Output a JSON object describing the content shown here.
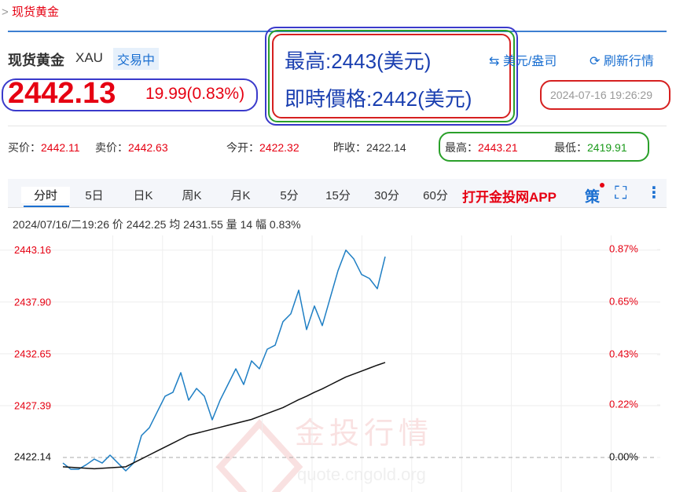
{
  "header": {
    "breadcrumb": "现货黄金",
    "name": "现货黄金",
    "code": "XAU",
    "status": "交易中"
  },
  "quote": {
    "price": "2442.13",
    "change": "19.99(0.83%)",
    "time": "2024-07-16 19:26:29",
    "unit": "美元/盎司",
    "refresh": "刷新行情"
  },
  "annotation": {
    "high": "最高:2443(美元)",
    "current": "即時價格:2442(美元)"
  },
  "stats": [
    {
      "label": "买价：",
      "value": "2442.11"
    },
    {
      "label": "卖价：",
      "value": "2442.63"
    },
    {
      "label": "今开：",
      "value": "2422.32"
    },
    {
      "label": "昨收：",
      "value": "2422.14"
    },
    {
      "label": "最高：",
      "value": "2443.21"
    },
    {
      "label": "最低：",
      "value": "2419.91"
    }
  ],
  "tabs": [
    "分时",
    "5日",
    "日K",
    "周K",
    "月K",
    "5分",
    "15分",
    "30分",
    "60分"
  ],
  "app_link": "打开金投网APP",
  "strategy": "策",
  "info": {
    "time": "2024/07/16/二19:26",
    "price_label": "价",
    "price": "2442.25",
    "avg_label": "均",
    "avg": "2431.55",
    "vol_label": "量",
    "vol": "14",
    "amp_label": "幅",
    "amp": "0.83%"
  },
  "watermark": {
    "title": "金投行情",
    "url": "quote.cngold.org"
  },
  "chart_data": {
    "type": "line",
    "ylim": [
      2418.8,
      2443.7
    ],
    "yticks": [
      2422.14,
      2427.39,
      2432.65,
      {
        "value": 2437.9,
        "label": "2437.90"
      },
      2443.16
    ],
    "y2lim": [
      -0.138,
      0.89
    ],
    "y2ticks": [
      {
        "value": 0,
        "label": "0.00%"
      },
      {
        "value": 0.22,
        "label": "0.22%"
      },
      {
        "value": 0.43,
        "label": "0.43%"
      },
      {
        "value": 0.65,
        "label": "0.65%"
      },
      {
        "value": 0.87,
        "label": "0.87%"
      }
    ],
    "grid": true,
    "series": [
      {
        "color": "#1f7fc4",
        "values": [
          2421.58,
          2420.95,
          2420.95,
          2421.42,
          2421.98,
          2421.58,
          2422.38,
          2421.58,
          2420.79,
          2421.58,
          2424.37,
          2425.16,
          2426.76,
          2428.35,
          2428.75,
          2430.74,
          2427.95,
          2429.14,
          2428.35,
          2425.96,
          2427.95,
          2429.54,
          2431.13,
          2429.54,
          2431.93,
          2431.13,
          2433.12,
          2433.52,
          2435.91,
          2436.71,
          2439.1,
          2435.11,
          2437.5,
          2435.51,
          2438.3,
          2441.08,
          2443.16,
          2442.28,
          2440.69,
          2440.29,
          2439.25,
          2442.5
        ]
      },
      {
        "color": "#111111",
        "values": [
          2421.2,
          2421.15,
          2421.1,
          2421.05,
          2421.0,
          2421.05,
          2421.1,
          2421.15,
          2421.2,
          2421.6,
          2422.0,
          2422.4,
          2422.8,
          2423.2,
          2423.6,
          2424.0,
          2424.4,
          2424.6,
          2424.8,
          2425.0,
          2425.2,
          2425.4,
          2425.6,
          2425.8,
          2426.0,
          2426.3,
          2426.6,
          2426.9,
          2427.2,
          2427.6,
          2428.0,
          2428.35,
          2428.75,
          2429.1,
          2429.5,
          2429.9,
          2430.3,
          2430.6,
          2430.9,
          2431.2,
          2431.5,
          2431.77
        ]
      }
    ]
  }
}
